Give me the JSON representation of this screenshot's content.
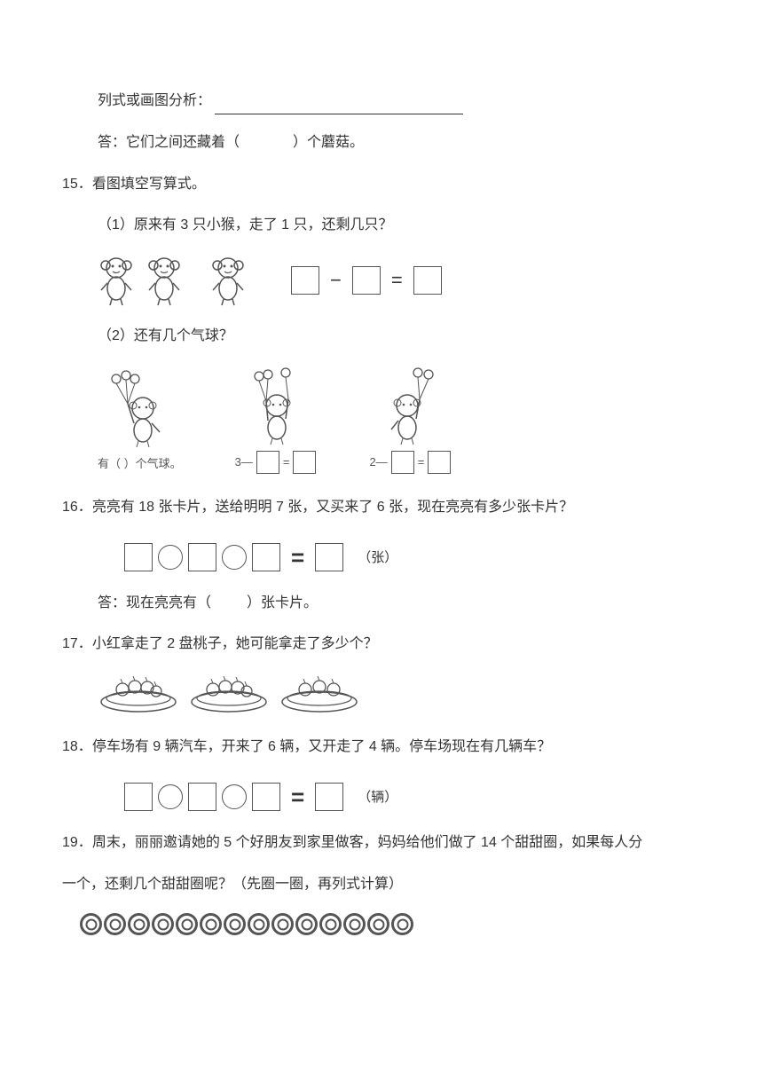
{
  "line1": {
    "label": "列式或画图分析："
  },
  "line2": {
    "prefix": "答：它们之间还藏着（",
    "suffix": "）个蘑菇。"
  },
  "q15": {
    "number": "15．",
    "title": "看图填空写算式。",
    "part1": "（1）原来有 3 只小猴，走了 1 只，还剩几只？",
    "part2": "（2）还有几个气球？",
    "balloon_caption1": "有（    ）个气球。",
    "minus": "—",
    "eq": "=",
    "three_minus": "3—",
    "two_minus": "2—"
  },
  "q16": {
    "number": "16．",
    "title": "亮亮有 18 张卡片，送给明明 7 张，又买来了 6 张，现在亮亮有多少张卡片？",
    "unit": "（张）",
    "answer_prefix": "答：现在亮亮有（",
    "answer_suffix": "）张卡片。"
  },
  "q17": {
    "number": "17．",
    "title": "小红拿走了 2 盘桃子，她可能拿走了多少个？"
  },
  "q18": {
    "number": "18．",
    "title": "停车场有 9 辆汽车，开来了 6 辆，又开走了 4 辆。停车场现在有几辆车？",
    "unit": "（辆）"
  },
  "q19": {
    "number": "19．",
    "title_a": "周末，丽丽邀请她的 5 个好朋友到家里做客，妈妈给他们做了 14 个甜甜圈，如果每人分",
    "title_b": "一个，还剩几个甜甜圈呢？（先圈一圈，再列式计算）",
    "donut_count": 14
  },
  "symbols": {
    "minus": "−",
    "equals": "="
  }
}
